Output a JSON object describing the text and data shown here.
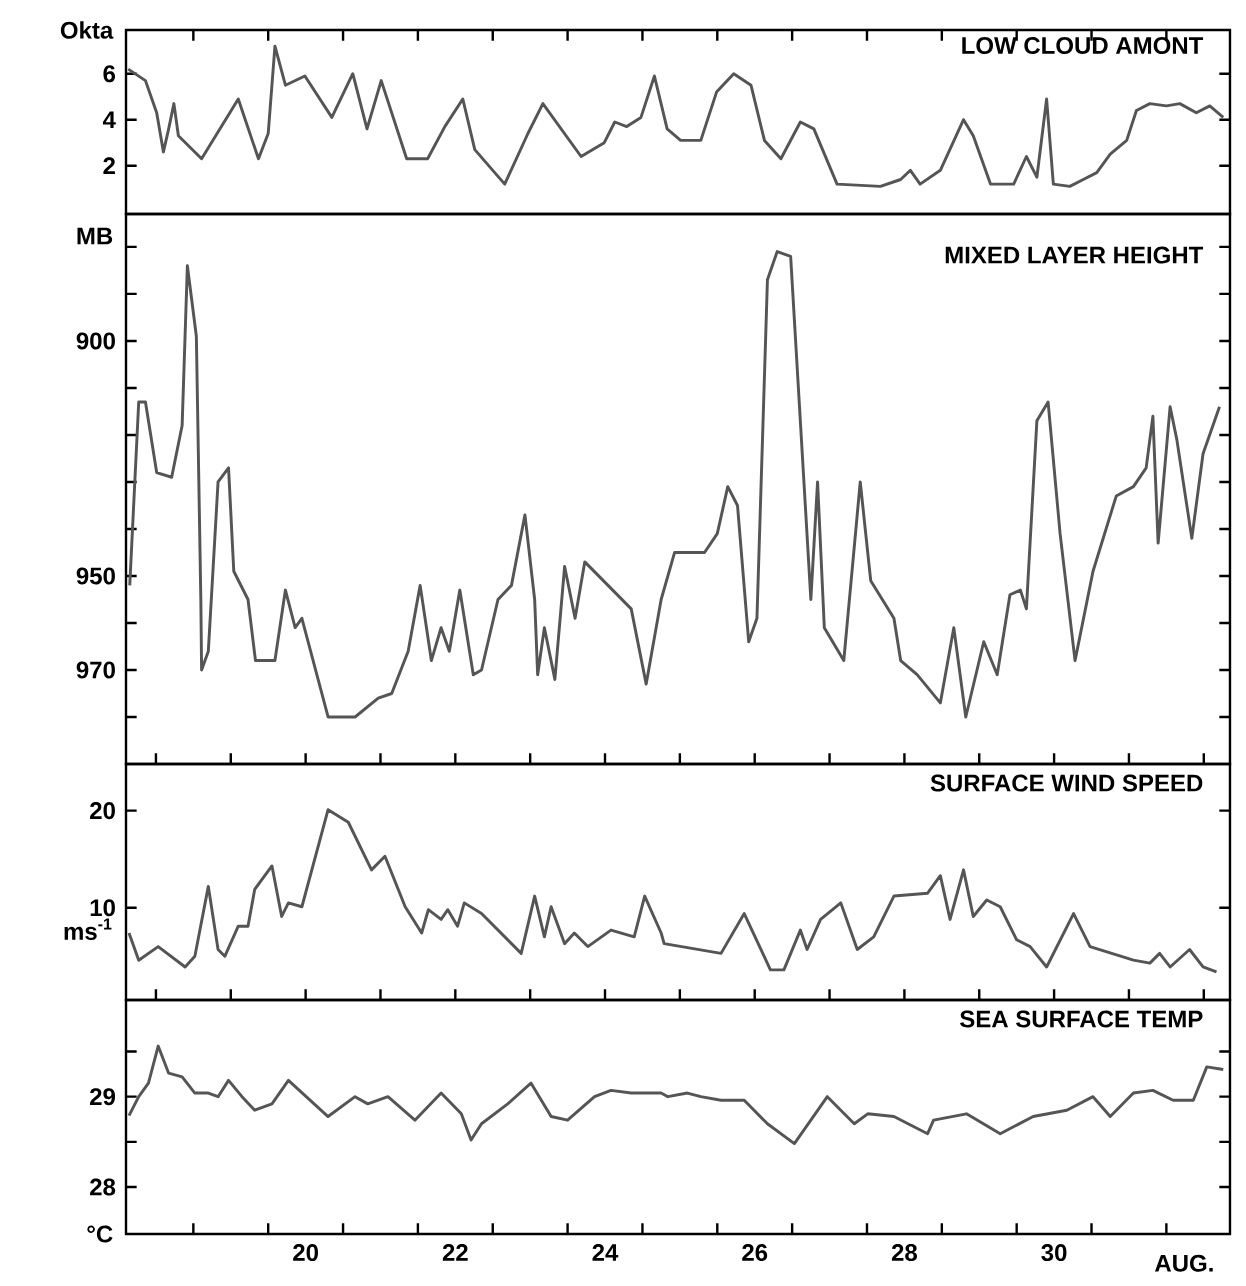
{
  "chart_data": [
    {
      "type": "line",
      "title": "LOW CLOUD AMONT",
      "ylabel": "Okta",
      "color": "#555555",
      "tick_labels": "y",
      "xlim": [
        17.6,
        32.35
      ],
      "ylim": [
        -0.1,
        7.9
      ],
      "xticks": [
        {
          "value": 18.5,
          "label": null
        },
        {
          "value": 19.5,
          "label": null
        },
        {
          "value": 20.5,
          "label": null
        },
        {
          "value": 21.5,
          "label": null
        },
        {
          "value": 22.5,
          "label": null
        },
        {
          "value": 23.5,
          "label": null
        },
        {
          "value": 24.5,
          "label": null
        },
        {
          "value": 25.5,
          "label": null
        },
        {
          "value": 26.5,
          "label": null
        },
        {
          "value": 27.5,
          "label": null
        },
        {
          "value": 28.5,
          "label": null
        },
        {
          "value": 29.5,
          "label": null
        },
        {
          "value": 30.5,
          "label": null
        },
        {
          "value": 31.5,
          "label": null
        }
      ],
      "yticks": [
        2,
        4,
        6
      ],
      "x": [
        17.63,
        17.86,
        18.01,
        18.1,
        18.17,
        18.24,
        18.3,
        18.61,
        19.1,
        19.37,
        19.5,
        19.59,
        19.73,
        19.99,
        20.35,
        20.63,
        20.82,
        21.01,
        21.35,
        21.63,
        21.86,
        22.1,
        22.26,
        22.66,
        22.97,
        23.17,
        23.68,
        23.99,
        24.13,
        24.29,
        24.48,
        24.66,
        24.83,
        25.01,
        25.28,
        25.49,
        25.72,
        25.95,
        26.13,
        26.35,
        26.61,
        26.79,
        27.1,
        27.68,
        27.95,
        28.08,
        28.21,
        28.48,
        28.79,
        28.92,
        29.15,
        29.46,
        29.63,
        29.77,
        29.9,
        29.99,
        30.21,
        30.39,
        30.57,
        30.75,
        30.97,
        31.1,
        31.28,
        31.5,
        31.68,
        31.9,
        32.08,
        32.26
      ],
      "values": [
        6.2,
        5.7,
        4.3,
        2.6,
        3.6,
        4.7,
        3.3,
        2.3,
        4.9,
        2.3,
        3.4,
        7.2,
        5.5,
        5.9,
        4.1,
        6.0,
        3.6,
        5.7,
        2.3,
        2.3,
        3.7,
        4.9,
        2.7,
        1.2,
        3.4,
        4.7,
        2.4,
        3.0,
        3.9,
        3.7,
        4.1,
        5.9,
        3.6,
        3.1,
        3.1,
        5.2,
        6.0,
        5.5,
        3.1,
        2.3,
        3.9,
        3.6,
        1.2,
        1.1,
        1.4,
        1.8,
        1.2,
        1.8,
        4.0,
        3.3,
        1.2,
        1.2,
        2.4,
        1.5,
        4.9,
        1.2,
        1.1,
        1.4,
        1.7,
        2.5,
        3.1,
        4.4,
        4.7,
        4.6,
        4.7,
        4.3,
        4.6,
        4.1
      ]
    },
    {
      "type": "line",
      "title": "MIXED LAYER HEIGHT",
      "ylabel": "MB",
      "color": "#555555",
      "tick_labels": "y",
      "xlim": [
        17.6,
        32.35
      ],
      "ylim": [
        990,
        873
      ],
      "yticks": [
        {
          "value": 880,
          "label": null
        },
        {
          "value": 890,
          "label": null
        },
        900,
        {
          "value": 910,
          "label": null
        },
        {
          "value": 920,
          "label": null
        },
        {
          "value": 930,
          "label": null
        },
        {
          "value": 940,
          "label": null
        },
        950,
        {
          "value": 960,
          "label": null
        },
        970,
        {
          "value": 980,
          "label": null
        }
      ],
      "x": [
        17.65,
        17.77,
        17.86,
        18.01,
        18.21,
        18.35,
        18.42,
        18.54,
        18.6,
        18.61,
        18.7,
        18.83,
        18.97,
        19.04,
        19.23,
        19.33,
        19.59,
        19.73,
        19.86,
        19.95,
        20.3,
        20.66,
        20.97,
        21.15,
        21.37,
        21.53,
        21.68,
        21.81,
        21.92,
        22.06,
        22.24,
        22.35,
        22.57,
        22.75,
        22.93,
        23.06,
        23.1,
        23.19,
        23.33,
        23.46,
        23.6,
        23.73,
        24.04,
        24.35,
        24.55,
        24.75,
        24.93,
        25.33,
        25.5,
        25.64,
        25.77,
        25.92,
        26.03,
        26.17,
        26.3,
        26.48,
        26.75,
        26.84,
        26.93,
        27.19,
        27.41,
        27.55,
        27.86,
        27.95,
        28.17,
        28.48,
        28.66,
        28.82,
        29.06,
        29.24,
        29.41,
        29.55,
        29.63,
        29.77,
        29.92,
        30.08,
        30.28,
        30.52,
        30.83,
        31.06,
        31.23,
        31.32,
        31.39,
        31.55,
        31.64,
        31.84,
        31.99,
        32.21
      ],
      "values": [
        952,
        913,
        913,
        928,
        929,
        918,
        884,
        899,
        955,
        970,
        966,
        930,
        927,
        949,
        955,
        968,
        968,
        953,
        961,
        959,
        980,
        980,
        976,
        975,
        966,
        952,
        968,
        961,
        966,
        953,
        971,
        970,
        955,
        952,
        937,
        955,
        971,
        961,
        972,
        948,
        959,
        947,
        952,
        957,
        973,
        955,
        945,
        945,
        941,
        931,
        935,
        964,
        959,
        887,
        881,
        882,
        955,
        930,
        961,
        968,
        930,
        951,
        959,
        968,
        971,
        977,
        961,
        980,
        964,
        971,
        954,
        953,
        957,
        917,
        913,
        941,
        968,
        949,
        933,
        931,
        927,
        916,
        943,
        914,
        921,
        942,
        924,
        914
      ]
    },
    {
      "type": "line",
      "title": "SURFACE WIND SPEED",
      "ylabel": "ms$^{-1}$",
      "color": "#555555",
      "tick_labels": "y",
      "xlim": [
        17.6,
        32.35
      ],
      "ylim": [
        0.5,
        24.8
      ],
      "yticks": [
        10,
        20
      ],
      "x": [
        17.64,
        17.77,
        18.03,
        18.39,
        18.52,
        18.7,
        18.83,
        18.92,
        19.1,
        19.23,
        19.32,
        19.55,
        19.68,
        19.77,
        19.95,
        20.3,
        20.57,
        20.88,
        21.06,
        21.33,
        21.55,
        21.64,
        21.81,
        21.9,
        22.03,
        22.12,
        22.35,
        22.88,
        23.06,
        23.19,
        23.28,
        23.46,
        23.59,
        23.77,
        24.08,
        24.39,
        24.53,
        24.75,
        24.79,
        25.55,
        25.86,
        26.21,
        26.39,
        26.61,
        26.7,
        26.88,
        27.15,
        27.37,
        27.59,
        27.86,
        28.31,
        28.48,
        28.61,
        28.79,
        28.92,
        29.1,
        29.28,
        29.5,
        29.68,
        29.9,
        30.26,
        30.48,
        31.06,
        31.28,
        31.41,
        31.55,
        31.81,
        31.99,
        32.17
      ],
      "values": [
        7.4,
        4.6,
        6.0,
        3.9,
        5.0,
        12.2,
        5.7,
        5.0,
        8.1,
        8.1,
        11.9,
        14.3,
        9.1,
        10.5,
        10.1,
        20.1,
        18.8,
        13.9,
        15.3,
        10.1,
        7.4,
        9.8,
        8.8,
        9.8,
        8.1,
        10.5,
        9.4,
        5.3,
        11.2,
        7.0,
        10.1,
        6.3,
        7.4,
        6.0,
        7.7,
        7.0,
        11.2,
        7.4,
        6.3,
        5.3,
        9.4,
        3.6,
        3.6,
        7.7,
        5.7,
        8.8,
        10.5,
        5.7,
        7.0,
        11.2,
        11.5,
        13.3,
        8.8,
        13.9,
        9.1,
        10.8,
        10.1,
        6.7,
        6.0,
        3.9,
        9.4,
        6.0,
        4.6,
        4.3,
        5.3,
        3.9,
        5.7,
        3.9,
        3.4
      ]
    },
    {
      "type": "line",
      "title": "SEA SURFACE TEMP",
      "ylabel": "°C",
      "xlabel": "AUG.",
      "color": "#555555",
      "xlim": [
        17.6,
        32.35
      ],
      "ylim": [
        27.48,
        30.07
      ],
      "xticks": [
        {
          "value": 18.5,
          "label": null
        },
        {
          "value": 19.5,
          "label": null
        },
        20,
        {
          "value": 20.5,
          "label": null
        },
        {
          "value": 21.5,
          "label": null
        },
        22,
        {
          "value": 22.5,
          "label": null
        },
        {
          "value": 23.5,
          "label": null
        },
        24,
        {
          "value": 24.5,
          "label": null
        },
        {
          "value": 25.5,
          "label": null
        },
        26,
        {
          "value": 26.5,
          "label": null
        },
        {
          "value": 27.5,
          "label": null
        },
        28,
        {
          "value": 28.5,
          "label": null
        },
        {
          "value": 29.5,
          "label": null
        },
        30,
        {
          "value": 30.5,
          "label": null
        },
        {
          "value": 31.5,
          "label": null
        }
      ],
      "yticks": [
        28,
        {
          "value": 28.5,
          "label": null
        },
        29,
        {
          "value": 29.5,
          "label": null
        }
      ],
      "x": [
        17.64,
        17.77,
        17.9,
        18.03,
        18.17,
        18.35,
        18.52,
        18.7,
        18.83,
        18.97,
        19.15,
        19.32,
        19.55,
        19.77,
        20.3,
        20.66,
        20.83,
        21.1,
        21.46,
        21.81,
        22.08,
        22.21,
        22.35,
        22.7,
        23.01,
        23.28,
        23.5,
        23.86,
        24.08,
        24.35,
        24.75,
        24.84,
        25.1,
        25.28,
        25.55,
        25.86,
        26.17,
        26.53,
        26.97,
        27.33,
        27.51,
        27.86,
        28.31,
        28.39,
        28.83,
        29.28,
        29.72,
        30.17,
        30.52,
        30.75,
        31.06,
        31.32,
        31.59,
        31.86,
        32.04,
        32.26
      ],
      "values": [
        28.79,
        29.0,
        29.15,
        29.56,
        29.26,
        29.22,
        29.04,
        29.04,
        29.0,
        29.18,
        29.0,
        28.85,
        28.92,
        29.18,
        28.78,
        29.0,
        28.92,
        29.0,
        28.74,
        29.04,
        28.81,
        28.52,
        28.7,
        28.92,
        29.15,
        28.78,
        28.74,
        29.0,
        29.07,
        29.04,
        29.04,
        29.0,
        29.04,
        29.0,
        28.96,
        28.96,
        28.7,
        28.48,
        29.0,
        28.7,
        28.81,
        28.78,
        28.59,
        28.74,
        28.81,
        28.59,
        28.78,
        28.85,
        29.0,
        28.78,
        29.04,
        29.07,
        28.96,
        28.96,
        29.33,
        29.3
      ]
    }
  ]
}
